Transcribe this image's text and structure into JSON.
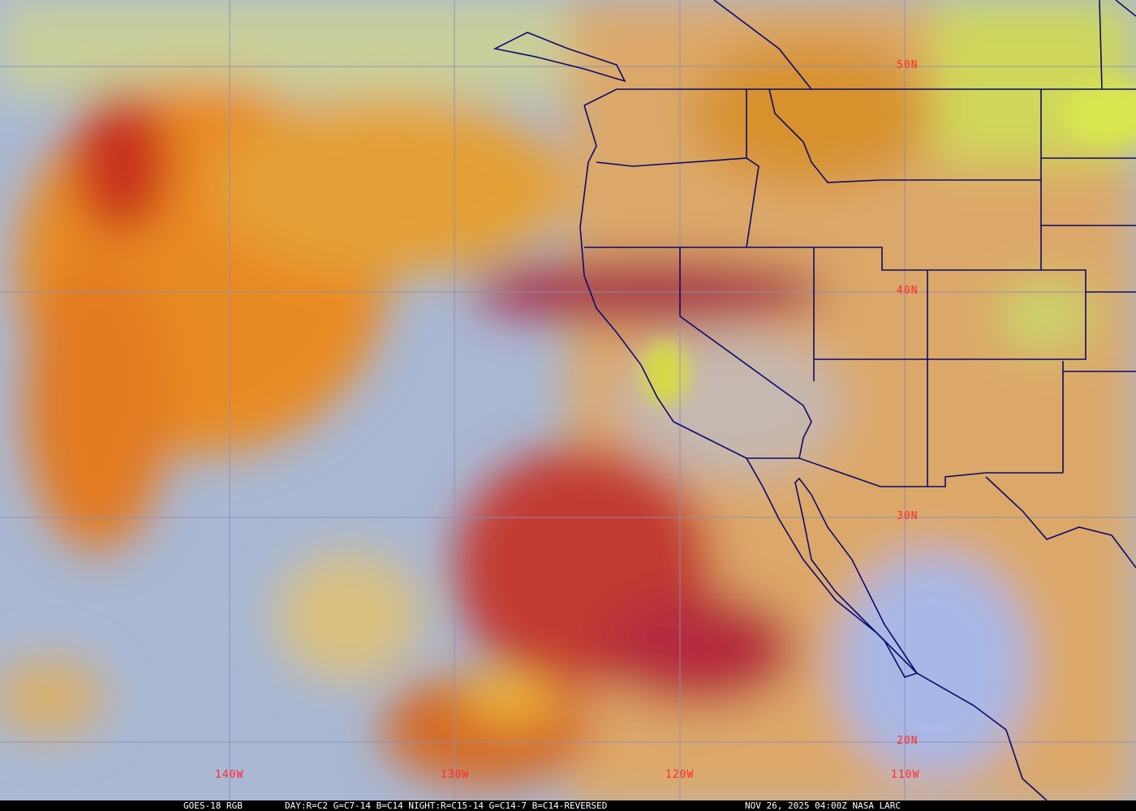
{
  "map": {
    "lat_labels": [
      "50N",
      "40N",
      "30N",
      "20N"
    ],
    "lon_labels": [
      "140W",
      "130W",
      "120W",
      "110W"
    ],
    "colors": {
      "grid": "#8a8fb8",
      "borders": "#0a0a6e",
      "labels": "#ff2a2a",
      "ocean_clear": "#a9b7d6",
      "high_cloud": "#d8501e",
      "low_cloud": "#e3c56a",
      "land": "#d9a860"
    }
  },
  "caption": {
    "satellite": "GOES-18 RGB",
    "recipe": "DAY:R=C2 G=C7-14 B=C14 NIGHT:R=C15-14 G=C14-7 B=C14-REVERSED",
    "timestamp": "NOV 26, 2025 04:00Z NASA LARC"
  }
}
